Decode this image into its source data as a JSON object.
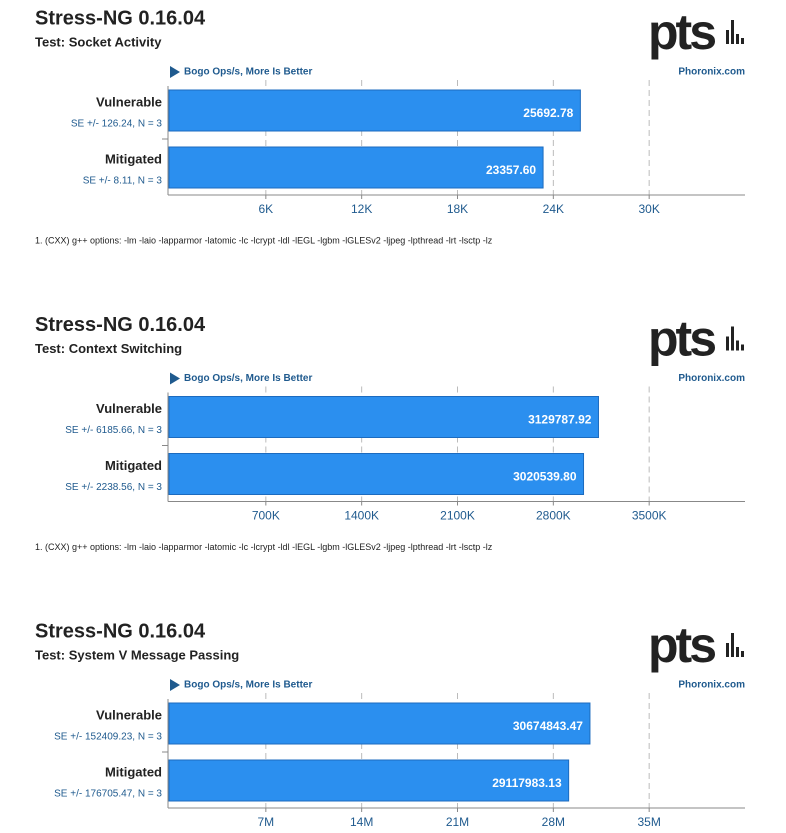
{
  "chart_data": [
    {
      "type": "bar",
      "orientation": "horizontal",
      "title": "Stress-NG 0.16.04",
      "subtitle": "Test: Socket Activity",
      "logo": "pts",
      "axis_label": "Bogo Ops/s, More Is Better",
      "source": "Phoronix.com",
      "categories": [
        "Vulnerable",
        "Mitigated"
      ],
      "errors_text": [
        "SE +/- 126.24, N = 3",
        "SE +/- 8.11, N = 3"
      ],
      "values": [
        25692.78,
        23357.6
      ],
      "value_labels": [
        "25692.78",
        "23357.60"
      ],
      "color": "#2b8fef",
      "xlim": [
        0,
        36000
      ],
      "xticks": [
        {
          "value": 6000,
          "label": "6K"
        },
        {
          "value": 12000,
          "label": "12K"
        },
        {
          "value": 18000,
          "label": "18K"
        },
        {
          "value": 24000,
          "label": "24K"
        },
        {
          "value": 30000,
          "label": "30K"
        }
      ],
      "grid": true,
      "note": "1. (CXX) g++ options: -lm -laio -lapparmor -latomic -lc -lcrypt -ldl -lEGL -lgbm -lGLESv2 -ljpeg -lpthread -lrt -lsctp -lz"
    },
    {
      "type": "bar",
      "orientation": "horizontal",
      "title": "Stress-NG 0.16.04",
      "subtitle": "Test: Context Switching",
      "logo": "pts",
      "axis_label": "Bogo Ops/s, More Is Better",
      "source": "Phoronix.com",
      "categories": [
        "Vulnerable",
        "Mitigated"
      ],
      "errors_text": [
        "SE +/- 6185.66, N = 3",
        "SE +/- 2238.56, N = 3"
      ],
      "values": [
        3129787.92,
        3020539.8
      ],
      "value_labels": [
        "3129787.92",
        "3020539.80"
      ],
      "color": "#2b8fef",
      "xlim": [
        0,
        4200000
      ],
      "xticks": [
        {
          "value": 700000,
          "label": "700K"
        },
        {
          "value": 1400000,
          "label": "1400K"
        },
        {
          "value": 2100000,
          "label": "2100K"
        },
        {
          "value": 2800000,
          "label": "2800K"
        },
        {
          "value": 3500000,
          "label": "3500K"
        }
      ],
      "grid": true,
      "note": "1. (CXX) g++ options: -lm -laio -lapparmor -latomic -lc -lcrypt -ldl -lEGL -lgbm -lGLESv2 -ljpeg -lpthread -lrt -lsctp -lz"
    },
    {
      "type": "bar",
      "orientation": "horizontal",
      "title": "Stress-NG 0.16.04",
      "subtitle": "Test: System V Message Passing",
      "logo": "pts",
      "axis_label": "Bogo Ops/s, More Is Better",
      "source": "Phoronix.com",
      "categories": [
        "Vulnerable",
        "Mitigated"
      ],
      "errors_text": [
        "SE +/- 152409.23, N = 3",
        "SE +/- 176705.47, N = 3"
      ],
      "values": [
        30674843.47,
        29117983.13
      ],
      "value_labels": [
        "30674843.47",
        "29117983.13"
      ],
      "color": "#2b8fef",
      "xlim": [
        0,
        42000000
      ],
      "xticks": [
        {
          "value": 7000000,
          "label": "7M"
        },
        {
          "value": 14000000,
          "label": "14M"
        },
        {
          "value": 21000000,
          "label": "21M"
        },
        {
          "value": 28000000,
          "label": "28M"
        },
        {
          "value": 35000000,
          "label": "35M"
        }
      ],
      "grid": true
    }
  ]
}
